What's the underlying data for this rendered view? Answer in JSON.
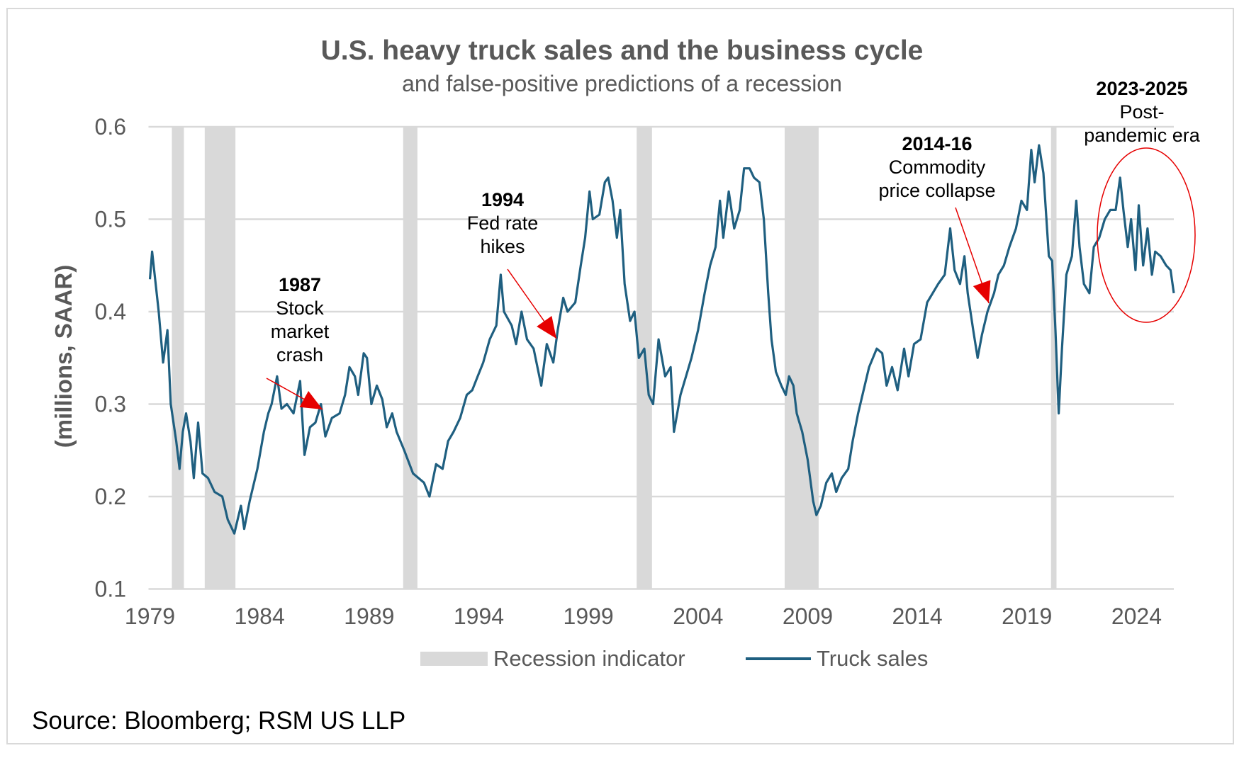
{
  "chart_data": {
    "type": "line",
    "title": "U.S. heavy truck sales and the business cycle",
    "subtitle": "and false-positive predictions of a recession",
    "ylabel": "(millions, SAAR)",
    "xlabel": "",
    "xlim": [
      1979,
      2025.7
    ],
    "ylim": [
      0.1,
      0.6
    ],
    "grid": "horizontal",
    "x_ticks": [
      "1979",
      "1984",
      "1989",
      "1994",
      "1999",
      "2004",
      "2009",
      "2014",
      "2019",
      "2024"
    ],
    "y_ticks": [
      "0.1",
      "0.2",
      "0.3",
      "0.4",
      "0.5",
      "0.6"
    ],
    "legend_position": "bottom",
    "legend": [
      "Recession indicator",
      "Truck sales"
    ],
    "colors": {
      "truck_sales": "#1f5f80",
      "recession": "#d9d9d9",
      "annotation": "#e60000",
      "grid": "#d9d9d9",
      "text": "#595959"
    },
    "recessions": [
      [
        1980.0,
        1980.55
      ],
      [
        1981.5,
        1982.9
      ],
      [
        1990.55,
        1991.2
      ],
      [
        2001.2,
        2001.9
      ],
      [
        2007.95,
        2009.5
      ],
      [
        2020.1,
        2020.35
      ]
    ],
    "series": [
      {
        "name": "Truck sales",
        "x": [
          1979.0,
          1979.1,
          1979.4,
          1979.6,
          1979.8,
          1979.95,
          1980.2,
          1980.35,
          1980.5,
          1980.65,
          1980.85,
          1981.0,
          1981.2,
          1981.4,
          1981.65,
          1981.95,
          1982.3,
          1982.55,
          1982.85,
          1983.0,
          1983.15,
          1983.3,
          1983.55,
          1983.9,
          1984.2,
          1984.4,
          1984.55,
          1984.8,
          1985.0,
          1985.25,
          1985.55,
          1985.85,
          1986.05,
          1986.3,
          1986.55,
          1986.8,
          1987.0,
          1987.3,
          1987.65,
          1987.9,
          1988.1,
          1988.35,
          1988.5,
          1988.75,
          1988.9,
          1989.1,
          1989.35,
          1989.6,
          1989.8,
          1990.05,
          1990.25,
          1990.6,
          1991.0,
          1991.25,
          1991.5,
          1991.75,
          1992.05,
          1992.35,
          1992.6,
          1992.85,
          1993.15,
          1993.45,
          1993.7,
          1993.95,
          1994.2,
          1994.5,
          1994.8,
          1995.0,
          1995.15,
          1995.5,
          1995.7,
          1995.95,
          1996.2,
          1996.5,
          1996.85,
          1997.1,
          1997.4,
          1997.6,
          1997.85,
          1998.05,
          1998.4,
          1998.65,
          1998.85,
          1999.05,
          1999.2,
          1999.5,
          1999.75,
          1999.9,
          2000.1,
          2000.3,
          2000.45,
          2000.65,
          2000.9,
          2001.1,
          2001.3,
          2001.55,
          2001.75,
          2001.95,
          2002.2,
          2002.5,
          2002.75,
          2002.9,
          2003.2,
          2003.45,
          2003.7,
          2004.0,
          2004.3,
          2004.55,
          2004.8,
          2005.0,
          2005.15,
          2005.4,
          2005.65,
          2005.9,
          2006.1,
          2006.35,
          2006.55,
          2006.8,
          2007.0,
          2007.2,
          2007.35,
          2007.55,
          2007.8,
          2008.0,
          2008.15,
          2008.35,
          2008.5,
          2008.75,
          2009.0,
          2009.25,
          2009.4,
          2009.6,
          2009.85,
          2010.1,
          2010.3,
          2010.55,
          2010.85,
          2011.05,
          2011.3,
          2011.6,
          2011.8,
          2012.15,
          2012.4,
          2012.6,
          2012.85,
          2013.1,
          2013.4,
          2013.6,
          2013.85,
          2014.15,
          2014.45,
          2014.7,
          2014.95,
          2015.25,
          2015.5,
          2015.7,
          2015.95,
          2016.15,
          2016.3,
          2016.55,
          2016.75,
          2016.95,
          2017.2,
          2017.5,
          2017.7,
          2017.95,
          2018.2,
          2018.5,
          2018.75,
          2019.0,
          2019.2,
          2019.35,
          2019.55,
          2019.75,
          2020.0,
          2020.15,
          2020.3,
          2020.45,
          2020.6,
          2020.8,
          2021.05,
          2021.25,
          2021.4,
          2021.6,
          2021.85,
          2022.05,
          2022.3,
          2022.55,
          2022.8,
          2023.05,
          2023.25,
          2023.4,
          2023.6,
          2023.75,
          2023.95,
          2024.1,
          2024.3,
          2024.5,
          2024.7,
          2024.85,
          2025.1,
          2025.35,
          2025.55,
          2025.7
        ],
        "y": [
          0.435,
          0.465,
          0.4,
          0.345,
          0.38,
          0.3,
          0.26,
          0.23,
          0.27,
          0.29,
          0.26,
          0.22,
          0.28,
          0.225,
          0.22,
          0.205,
          0.2,
          0.175,
          0.16,
          0.175,
          0.19,
          0.165,
          0.195,
          0.23,
          0.27,
          0.29,
          0.3,
          0.33,
          0.295,
          0.3,
          0.29,
          0.325,
          0.245,
          0.275,
          0.28,
          0.3,
          0.265,
          0.285,
          0.29,
          0.31,
          0.34,
          0.33,
          0.31,
          0.355,
          0.35,
          0.3,
          0.32,
          0.305,
          0.275,
          0.29,
          0.27,
          0.25,
          0.225,
          0.22,
          0.215,
          0.2,
          0.235,
          0.23,
          0.26,
          0.27,
          0.285,
          0.31,
          0.315,
          0.33,
          0.345,
          0.37,
          0.385,
          0.44,
          0.4,
          0.385,
          0.365,
          0.4,
          0.37,
          0.36,
          0.32,
          0.365,
          0.345,
          0.38,
          0.415,
          0.4,
          0.41,
          0.45,
          0.48,
          0.53,
          0.5,
          0.505,
          0.54,
          0.545,
          0.52,
          0.48,
          0.51,
          0.43,
          0.39,
          0.4,
          0.35,
          0.36,
          0.31,
          0.3,
          0.37,
          0.33,
          0.34,
          0.27,
          0.31,
          0.33,
          0.35,
          0.38,
          0.42,
          0.45,
          0.47,
          0.52,
          0.48,
          0.53,
          0.49,
          0.51,
          0.555,
          0.555,
          0.545,
          0.54,
          0.5,
          0.42,
          0.37,
          0.335,
          0.32,
          0.31,
          0.33,
          0.32,
          0.29,
          0.27,
          0.24,
          0.195,
          0.18,
          0.19,
          0.215,
          0.225,
          0.205,
          0.22,
          0.23,
          0.26,
          0.29,
          0.32,
          0.34,
          0.36,
          0.355,
          0.32,
          0.34,
          0.315,
          0.36,
          0.33,
          0.365,
          0.37,
          0.41,
          0.42,
          0.43,
          0.44,
          0.49,
          0.445,
          0.43,
          0.46,
          0.42,
          0.38,
          0.35,
          0.375,
          0.4,
          0.42,
          0.44,
          0.45,
          0.47,
          0.49,
          0.52,
          0.51,
          0.575,
          0.54,
          0.58,
          0.55,
          0.46,
          0.455,
          0.38,
          0.29,
          0.36,
          0.44,
          0.46,
          0.52,
          0.47,
          0.43,
          0.42,
          0.47,
          0.48,
          0.5,
          0.51,
          0.51,
          0.545,
          0.51,
          0.47,
          0.5,
          0.445,
          0.515,
          0.45,
          0.49,
          0.44,
          0.465,
          0.46,
          0.45,
          0.445,
          0.42
        ]
      }
    ],
    "annotations": [
      {
        "year": "1987",
        "text": [
          "Stock",
          "market",
          "crash"
        ]
      },
      {
        "year": "1994",
        "text": [
          "Fed rate",
          "hikes"
        ]
      },
      {
        "year": "2014-16",
        "text": [
          "Commodity",
          "price collapse"
        ]
      },
      {
        "year": "2023-2025",
        "text": [
          "Post-",
          "pandemic era"
        ]
      }
    ]
  },
  "source": "Source: Bloomberg; RSM US LLP"
}
